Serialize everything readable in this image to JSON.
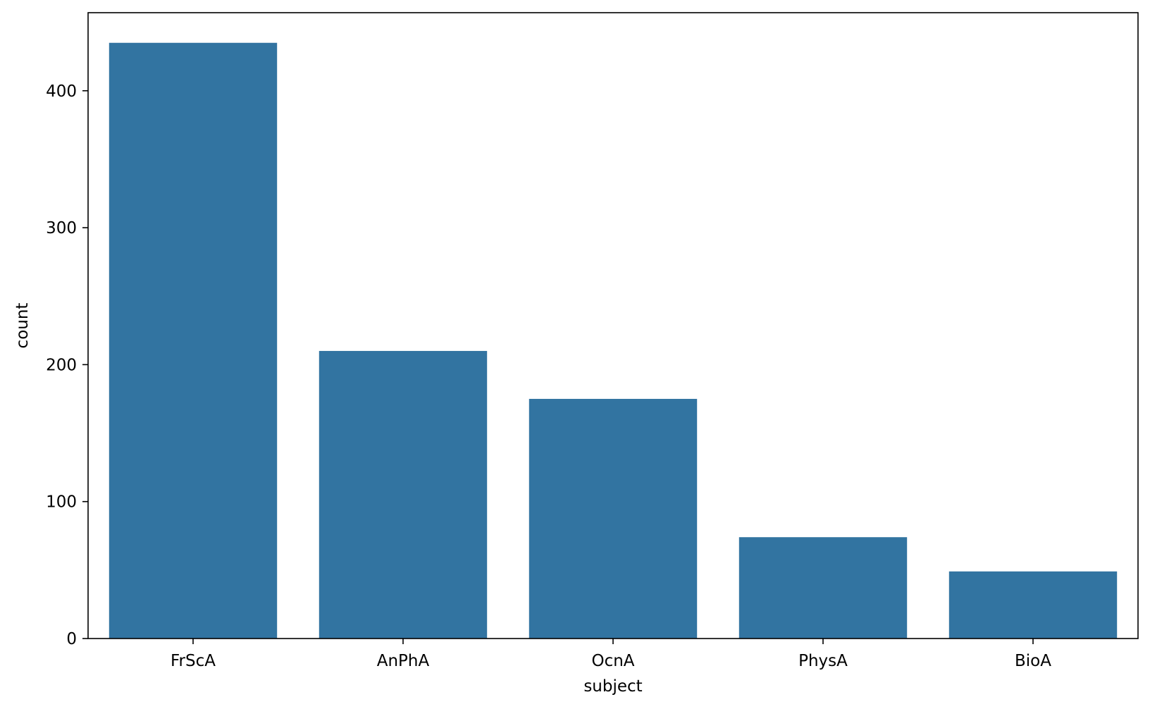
{
  "chart_data": {
    "type": "bar",
    "categories": [
      "FrScA",
      "AnPhA",
      "OcnA",
      "PhysA",
      "BioA"
    ],
    "values": [
      435,
      210,
      175,
      74,
      49
    ],
    "xlabel": "subject",
    "ylabel": "count",
    "ylim": [
      0,
      457
    ],
    "yticks": [
      0,
      100,
      200,
      300,
      400
    ],
    "bar_color": "#3274a1",
    "grid": false,
    "legend": false
  }
}
